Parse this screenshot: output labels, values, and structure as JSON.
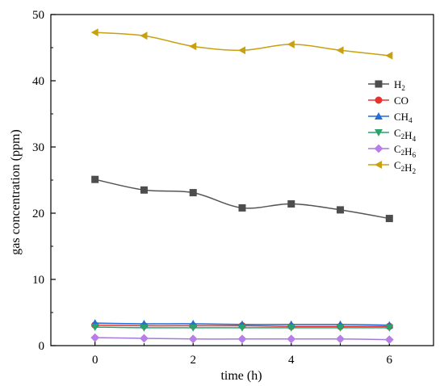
{
  "chart_data": {
    "type": "line",
    "title": "",
    "xlabel": "time (h)",
    "ylabel": "gas concentration (ppm)",
    "xlim": [
      -0.9,
      6.9
    ],
    "ylim": [
      0,
      50
    ],
    "x": [
      0,
      1,
      2,
      3,
      4,
      5,
      6
    ],
    "x_ticks": [
      "0",
      "2",
      "4",
      "6"
    ],
    "y_ticks": [
      "0",
      "10",
      "20",
      "30",
      "40",
      "50"
    ],
    "grid": false,
    "legend_position": "top-right",
    "series": [
      {
        "name": "H2",
        "sub": "2",
        "base": "H",
        "marker": "square",
        "color": "#4d4d4d",
        "line": "#555555",
        "values": [
          25.1,
          23.5,
          23.1,
          20.8,
          21.4,
          20.5,
          19.2
        ]
      },
      {
        "name": "CO",
        "marker": "circle",
        "color": "#e8322f",
        "line": "#e8322f",
        "values": [
          3.1,
          3.0,
          3.0,
          3.0,
          2.9,
          2.9,
          2.9
        ]
      },
      {
        "name": "CH4",
        "marker": "triangle-up",
        "color": "#1f6fd6",
        "line": "#1f6fd6",
        "values": [
          3.4,
          3.3,
          3.3,
          3.2,
          3.2,
          3.2,
          3.1
        ]
      },
      {
        "name": "C2H4",
        "marker": "triangle-down",
        "color": "#2aa36b",
        "line": "#2aa36b",
        "values": [
          2.8,
          2.7,
          2.7,
          2.7,
          2.7,
          2.7,
          2.7
        ]
      },
      {
        "name": "C2H6",
        "marker": "diamond",
        "color": "#b77ee8",
        "line": "#a57ad8",
        "values": [
          1.2,
          1.1,
          1.0,
          1.0,
          1.0,
          1.0,
          0.9
        ]
      },
      {
        "name": "C2H2",
        "marker": "triangle-left",
        "color": "#c9a010",
        "line": "#c9a010",
        "values": [
          47.3,
          46.8,
          45.2,
          44.6,
          45.5,
          44.6,
          43.8
        ]
      }
    ]
  }
}
